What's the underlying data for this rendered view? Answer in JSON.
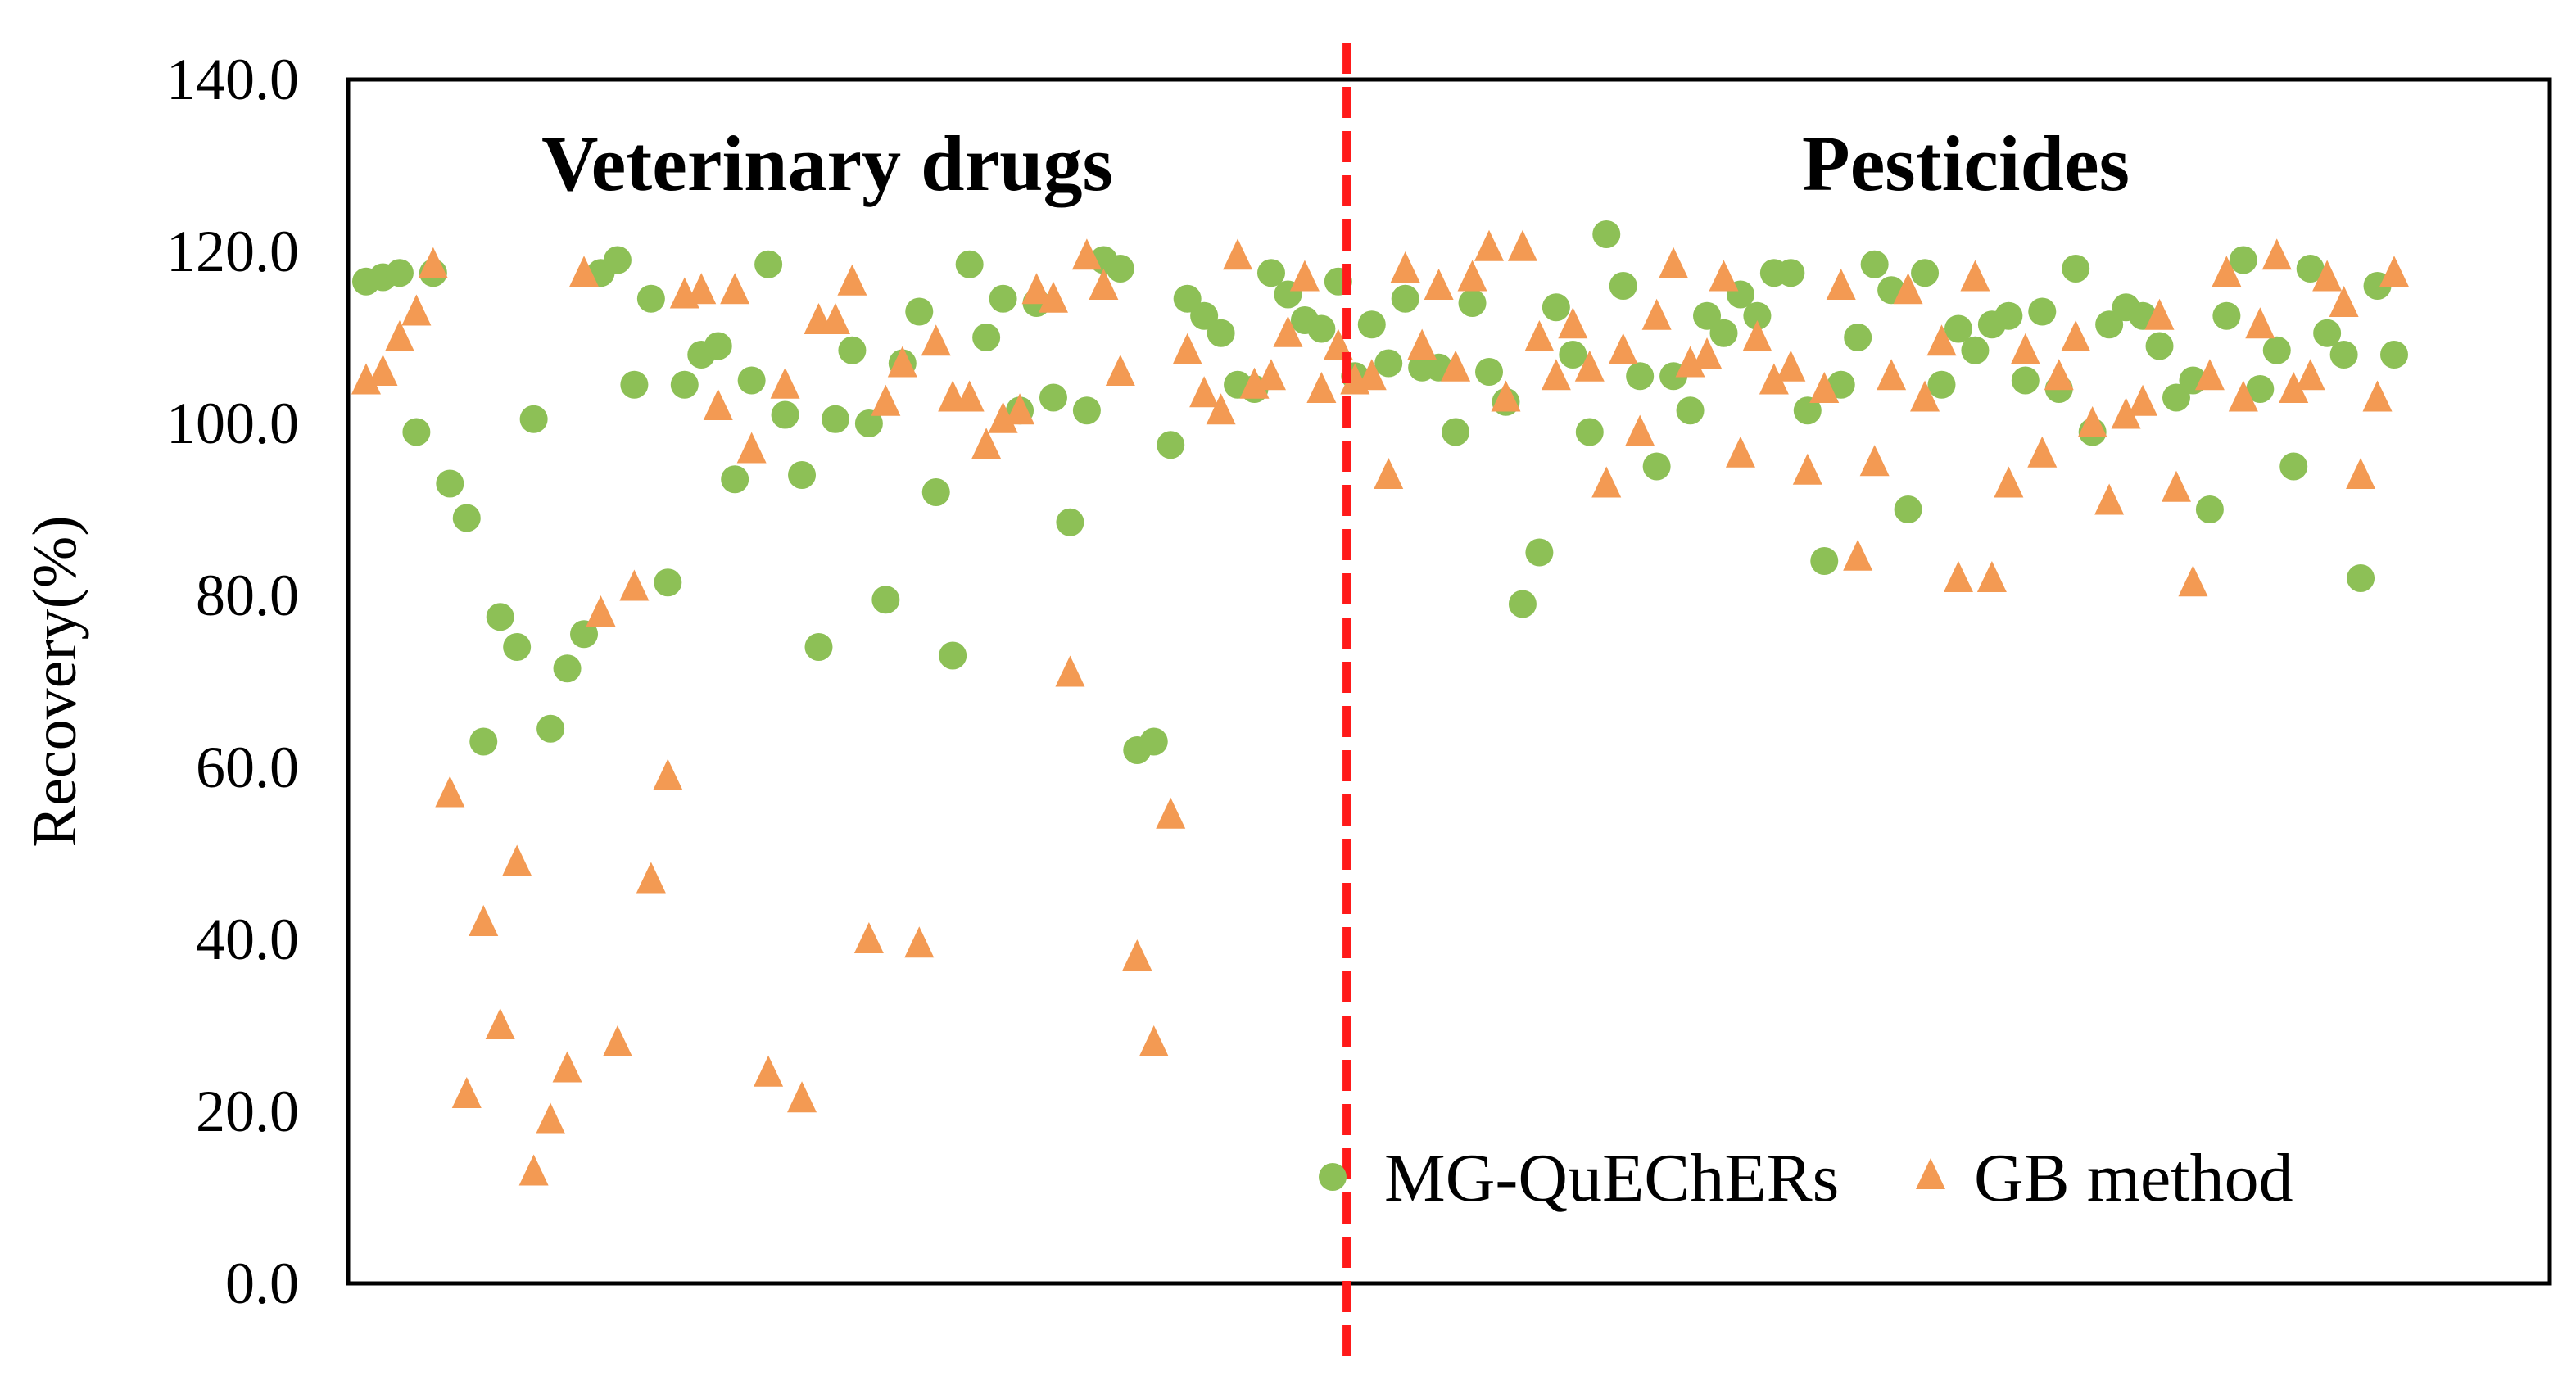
{
  "chart_data": {
    "type": "scatter",
    "title": "",
    "xlabel": "",
    "ylabel": "Recovery(%)",
    "ylim": [
      0,
      140
    ],
    "yticks": [
      "0.0",
      "20.0",
      "40.0",
      "60.0",
      "80.0",
      "100.0",
      "120.0",
      "140.0"
    ],
    "grid": false,
    "legend_position": "bottom-right",
    "point_count": 122,
    "divider_after_index": 58,
    "regions": [
      {
        "label": "Veterinary drugs",
        "side": "left"
      },
      {
        "label": "Pesticides",
        "side": "right"
      }
    ],
    "colors": {
      "green": "#8dc056",
      "orange": "#f39a53",
      "divider": "#ff1a1a",
      "frame": "#000000"
    },
    "series": [
      {
        "name": "MG-QuEChERs",
        "marker": "circle",
        "color": "#8dc056",
        "values": [
          116.5,
          117.0,
          117.5,
          99.0,
          117.5,
          93.0,
          89.0,
          63.0,
          77.5,
          74.0,
          100.5,
          64.5,
          71.5,
          75.5,
          117.5,
          119.0,
          104.5,
          114.5,
          81.5,
          104.5,
          108.0,
          109.0,
          93.5,
          105.0,
          118.5,
          101.0,
          94.0,
          74.0,
          100.5,
          108.5,
          100.0,
          79.5,
          107.0,
          113.0,
          92.0,
          73.0,
          118.5,
          110.0,
          114.5,
          101.5,
          114.0,
          103.0,
          88.5,
          101.5,
          119.0,
          118.0,
          62.0,
          63.0,
          97.5,
          114.5,
          112.5,
          110.5,
          104.5,
          104.0,
          117.5,
          115.0,
          112.0,
          111.0,
          116.5,
          105.5,
          111.5,
          107.0,
          114.5,
          106.5,
          106.5,
          99.0,
          114.0,
          106.0,
          102.5,
          79.0,
          85.0,
          113.5,
          108.0,
          99.0,
          122.0,
          116.0,
          105.5,
          95.0,
          105.5,
          101.5,
          112.5,
          110.5,
          115.0,
          112.5,
          117.5,
          117.5,
          101.5,
          84.0,
          104.5,
          110.0,
          118.5,
          115.5,
          90.0,
          117.5,
          104.5,
          111.0,
          108.5,
          111.5,
          112.5,
          105.0,
          113.0,
          104.0,
          118.0,
          99.0,
          111.5,
          113.5,
          112.5,
          109.0,
          103.0,
          105.0,
          90.0,
          112.5,
          119.0,
          104.0,
          108.5,
          95.0,
          118.0,
          110.5,
          108.0,
          82.0,
          116.0,
          108.0
        ]
      },
      {
        "name": "GB method",
        "marker": "triangle",
        "color": "#f39a53",
        "values": [
          105.0,
          106.0,
          110.0,
          113.0,
          118.5,
          57.0,
          22.0,
          42.0,
          30.0,
          49.0,
          13.0,
          19.0,
          25.0,
          117.5,
          78.0,
          28.0,
          81.0,
          47.0,
          59.0,
          115.0,
          115.5,
          102.0,
          115.5,
          97.0,
          24.5,
          104.5,
          21.5,
          112.0,
          112.0,
          116.5,
          40.0,
          102.5,
          107.0,
          39.5,
          109.5,
          103.0,
          103.0,
          97.5,
          100.5,
          101.5,
          115.5,
          114.5,
          71.0,
          119.5,
          116.0,
          106.0,
          38.0,
          28.0,
          54.5,
          108.5,
          103.5,
          101.5,
          119.5,
          104.5,
          105.5,
          110.5,
          117.0,
          104.0,
          109.0,
          105.0,
          105.5,
          94.0,
          118.0,
          109.0,
          116.0,
          106.5,
          117.0,
          120.5,
          103.0,
          120.5,
          110.0,
          105.5,
          111.5,
          106.5,
          93.0,
          108.5,
          99.0,
          112.5,
          118.5,
          107.0,
          108.0,
          117.0,
          96.5,
          110.0,
          105.0,
          106.5,
          94.5,
          104.0,
          116.0,
          84.5,
          95.5,
          105.5,
          115.5,
          103.0,
          109.5,
          82.0,
          117.0,
          82.0,
          93.0,
          108.5,
          96.5,
          105.5,
          110.0,
          100.0,
          91.0,
          101.0,
          102.5,
          112.5,
          92.5,
          81.5,
          105.5,
          117.5,
          103.0,
          111.5,
          119.5,
          104.0,
          105.5,
          117.0,
          114.0,
          94.0,
          103.0,
          117.5
        ]
      }
    ]
  }
}
